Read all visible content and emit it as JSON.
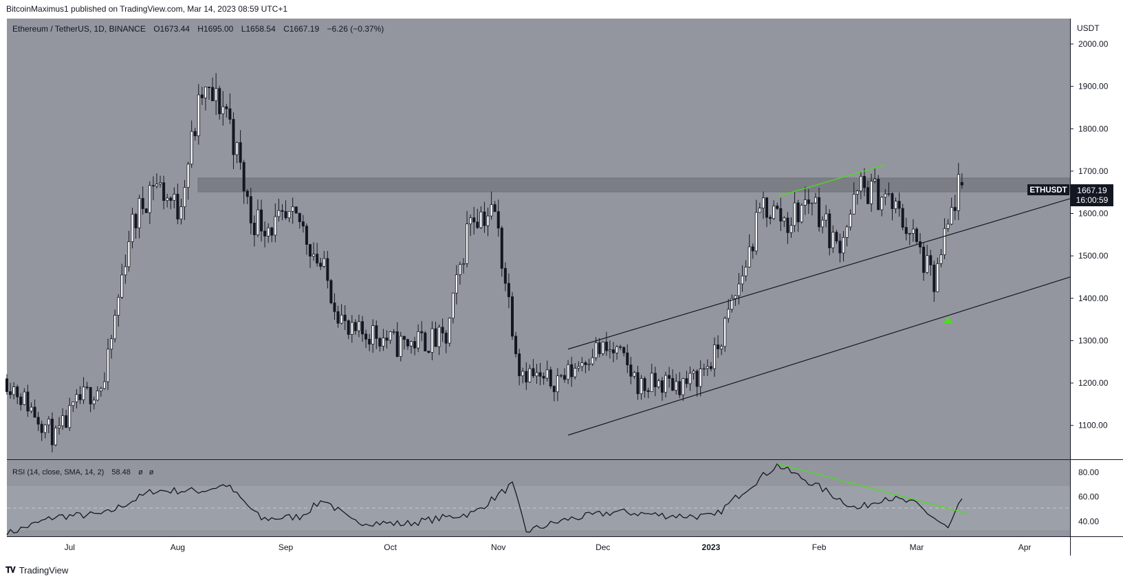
{
  "publisher": {
    "text": "BitcoinMaximus1 published on TradingView.com, Mar 14, 2023 08:59 UTC+1"
  },
  "footer": {
    "logo_icon": "tradingview-logo-icon",
    "brand": "TradingView"
  },
  "legend": {
    "symbol": "Ethereum / TetherUS, 1D, BINANCE",
    "o_label": "O",
    "o_value": "1673.44",
    "h_label": "H",
    "h_value": "1695.00",
    "l_label": "L",
    "l_value": "1658.54",
    "c_label": "C",
    "c_value": "1667.19",
    "change": "−6.26 (−0.37%)"
  },
  "price_axis": {
    "unit": "USDT",
    "ticks": [
      "2000.00",
      "1900.00",
      "1800.00",
      "1700.00",
      "1600.00",
      "1500.00",
      "1400.00",
      "1300.00",
      "1200.00",
      "1100.00"
    ]
  },
  "price_tag": {
    "symbol": "ETHUSDT",
    "price": "1667.19",
    "countdown": "16:00:59"
  },
  "rsi": {
    "title": "RSI (14, close, SMA, 14, 2)",
    "value": "58.48",
    "extra1": "ø",
    "extra2": "ø",
    "ticks": [
      "80.00",
      "60.00",
      "40.00"
    ]
  },
  "time_axis": {
    "labels": [
      "Jul",
      "Aug",
      "Sep",
      "Oct",
      "Nov",
      "Dec",
      "2023",
      "Feb",
      "Mar",
      "Apr"
    ]
  },
  "colors": {
    "pane_bg": "#94969f",
    "candle": "#131722",
    "channel": "#131722",
    "divergence": "#4bde1c",
    "resistance_zone": "#7c7e86",
    "rsi_band": "#9ca0a8"
  },
  "chart_data": {
    "type": "candlestick",
    "symbol": "ETHUSDT",
    "timeframe": "1D",
    "ylim": [
      1020,
      2060
    ],
    "x_range": [
      "2022-06-13",
      "2023-04-14"
    ],
    "resistance_zone": [
      1665,
      1700
    ],
    "close_approx": [
      [
        "2022-06-13",
        1210
      ],
      [
        "2022-06-20",
        1140
      ],
      [
        "2022-06-27",
        1070
      ],
      [
        "2022-07-04",
        1160
      ],
      [
        "2022-07-11",
        1200
      ],
      [
        "2022-07-18",
        1550
      ],
      [
        "2022-07-25",
        1680
      ],
      [
        "2022-08-01",
        1610
      ],
      [
        "2022-08-08",
        1880
      ],
      [
        "2022-08-15",
        1850
      ],
      [
        "2022-08-22",
        1590
      ],
      [
        "2022-08-29",
        1570
      ],
      [
        "2022-09-05",
        1580
      ],
      [
        "2022-09-12",
        1460
      ],
      [
        "2022-09-19",
        1310
      ],
      [
        "2022-09-26",
        1320
      ],
      [
        "2022-10-03",
        1290
      ],
      [
        "2022-10-10",
        1300
      ],
      [
        "2022-10-17",
        1300
      ],
      [
        "2022-10-24",
        1600
      ],
      [
        "2022-10-31",
        1600
      ],
      [
        "2022-11-07",
        1240
      ],
      [
        "2022-11-14",
        1200
      ],
      [
        "2022-11-21",
        1220
      ],
      [
        "2022-11-28",
        1280
      ],
      [
        "2022-12-05",
        1270
      ],
      [
        "2022-12-12",
        1190
      ],
      [
        "2022-12-19",
        1200
      ],
      [
        "2022-12-26",
        1200
      ],
      [
        "2023-01-02",
        1260
      ],
      [
        "2023-01-09",
        1430
      ],
      [
        "2023-01-16",
        1620
      ],
      [
        "2023-01-23",
        1580
      ],
      [
        "2023-01-30",
        1640
      ],
      [
        "2023-02-06",
        1520
      ],
      [
        "2023-02-13",
        1660
      ],
      [
        "2023-02-20",
        1640
      ],
      [
        "2023-02-27",
        1560
      ],
      [
        "2023-03-06",
        1430
      ],
      [
        "2023-03-13",
        1667.19
      ]
    ],
    "ascending_channel": {
      "upper": [
        [
          "2022-11-21",
          1280
        ],
        [
          "2023-04-14",
          1635
        ]
      ],
      "lower": [
        [
          "2022-11-21",
          1077
        ],
        [
          "2023-04-14",
          1450
        ]
      ]
    },
    "price_divergence_line": [
      [
        "2023-01-20",
        1640
      ],
      [
        "2023-02-20",
        1715
      ]
    ],
    "support_marker": {
      "date": "2023-03-10",
      "price": 1350
    },
    "rsi": {
      "ylim": [
        28,
        90
      ],
      "band": [
        30,
        70
      ],
      "midline": 50,
      "values_approx": [
        [
          "2022-06-13",
          30
        ],
        [
          "2022-06-27",
          44
        ],
        [
          "2022-07-11",
          46
        ],
        [
          "2022-07-25",
          65
        ],
        [
          "2022-08-08",
          65
        ],
        [
          "2022-08-15",
          70
        ],
        [
          "2022-08-25",
          42
        ],
        [
          "2022-09-05",
          44
        ],
        [
          "2022-09-12",
          58
        ],
        [
          "2022-09-20",
          40
        ],
        [
          "2022-10-05",
          38
        ],
        [
          "2022-10-25",
          47
        ],
        [
          "2022-11-05",
          70
        ],
        [
          "2022-11-09",
          32
        ],
        [
          "2022-11-21",
          42
        ],
        [
          "2022-12-05",
          48
        ],
        [
          "2022-12-19",
          45
        ],
        [
          "2023-01-02",
          44
        ],
        [
          "2023-01-10",
          64
        ],
        [
          "2023-01-20",
          86
        ],
        [
          "2023-02-01",
          68
        ],
        [
          "2023-02-12",
          50
        ],
        [
          "2023-02-20",
          60
        ],
        [
          "2023-03-01",
          54
        ],
        [
          "2023-03-10",
          34
        ],
        [
          "2023-03-14",
          58.48
        ]
      ],
      "divergence_line": [
        [
          "2023-01-20",
          87
        ],
        [
          "2023-03-15",
          47
        ]
      ]
    }
  }
}
